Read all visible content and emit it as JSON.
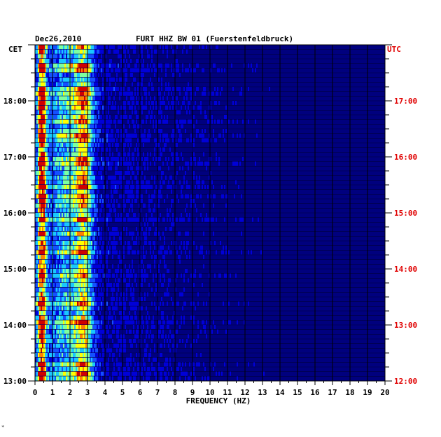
{
  "chart_data": {
    "type": "heatmap",
    "title": "FURT HHZ BW 01 (Fuerstenfeldbruck)",
    "date": "Dec26,2010",
    "xlabel": "FREQUENCY (HZ)",
    "left_axis_label": "CET",
    "right_axis_label": "UTC",
    "xlim": [
      0,
      20
    ],
    "x_ticks": [
      "0",
      "1",
      "2",
      "3",
      "4",
      "5",
      "6",
      "7",
      "8",
      "9",
      "10",
      "11",
      "12",
      "13",
      "14",
      "15",
      "16",
      "17",
      "18",
      "19",
      "20"
    ],
    "cet_ticks": [
      "13:00",
      "14:00",
      "15:00",
      "16:00",
      "17:00",
      "18:00"
    ],
    "utc_ticks": [
      "12:00",
      "13:00",
      "14:00",
      "15:00",
      "16:00",
      "17:00"
    ],
    "time_range_cet": [
      "13:00",
      "19:00"
    ],
    "rows_per_hour": 12,
    "colormap": [
      "#00007e",
      "#0000d8",
      "#1450ff",
      "#19c8ff",
      "#7dffa0",
      "#ffff00",
      "#ff8000",
      "#d00000"
    ],
    "dominant_bands_hz": [
      {
        "center": 0.4,
        "width": 0.25,
        "level": 0.9
      },
      {
        "center": 2.8,
        "width": 0.5,
        "level": 0.6
      },
      {
        "center": 1.8,
        "width": 0.9,
        "level": 0.35
      }
    ],
    "footnote_mark": "*"
  },
  "colors": {
    "plot_background": "#00007e",
    "left_axis": "#000000",
    "right_axis": "#e00000"
  }
}
